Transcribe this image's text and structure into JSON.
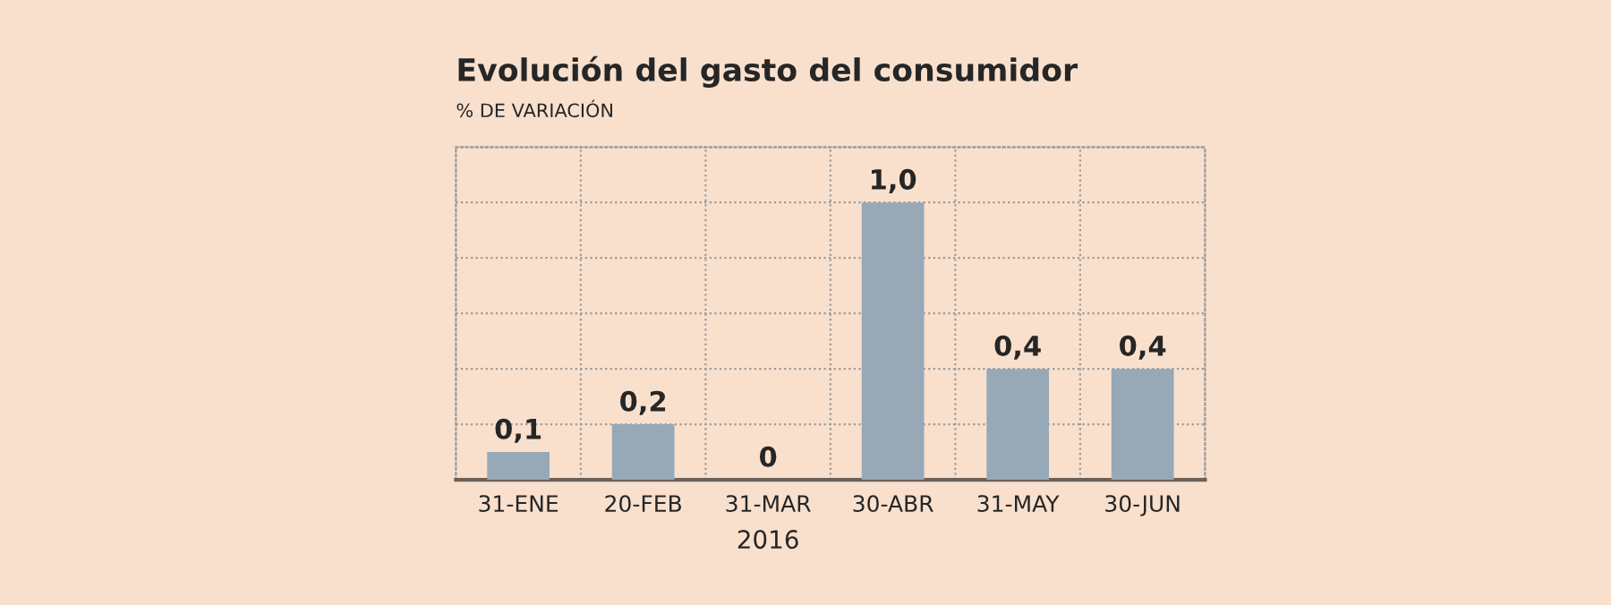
{
  "chart_data": {
    "type": "bar",
    "title": "Evolución del gasto del consumidor",
    "subtitle": "% DE VARIACIÓN",
    "categories": [
      "31-ENE",
      "20-FEB",
      "31-MAR",
      "30-ABR",
      "31-MAY",
      "30-JUN"
    ],
    "values": [
      0.1,
      0.2,
      0,
      1.0,
      0.4,
      0.4
    ],
    "value_labels": [
      "0,1",
      "0,2",
      "0",
      "1,0",
      "0,4",
      "0,4"
    ],
    "color": "#97a8b7",
    "ylim": [
      0,
      1.2
    ],
    "yticks": [
      {
        "value": 0,
        "label": null
      },
      {
        "value": 0.2,
        "label": null
      },
      {
        "value": 0.4,
        "label": null
      },
      {
        "value": 0.6,
        "label": null
      },
      {
        "value": 0.8,
        "label": null
      },
      {
        "value": 1.0,
        "label": null
      },
      {
        "value": 1.2,
        "label": null
      }
    ],
    "grid": true,
    "tick_labels": "x",
    "annotations": [
      "2016"
    ]
  }
}
